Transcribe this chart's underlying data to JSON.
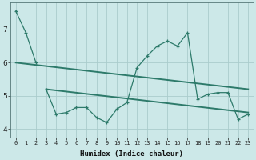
{
  "xlabel": "Humidex (Indice chaleur)",
  "background_color": "#cce8e8",
  "grid_color": "#aacccc",
  "line_color": "#2d7a6a",
  "x_values": [
    0,
    1,
    2,
    3,
    4,
    5,
    6,
    7,
    8,
    9,
    10,
    11,
    12,
    13,
    14,
    15,
    16,
    17,
    18,
    19,
    20,
    21,
    22,
    23
  ],
  "series1_x": [
    0,
    1,
    2
  ],
  "series1_y": [
    7.55,
    6.9,
    6.0
  ],
  "series2_x": [
    3,
    4,
    5,
    6,
    7,
    8,
    9,
    10,
    11,
    12,
    13,
    14,
    15,
    16,
    17,
    18,
    19,
    20,
    21,
    22,
    23
  ],
  "series2_y": [
    5.2,
    4.45,
    4.5,
    4.65,
    4.65,
    4.35,
    4.2,
    4.6,
    4.8,
    5.85,
    6.2,
    6.5,
    6.65,
    6.5,
    6.9,
    4.9,
    5.05,
    5.1,
    5.1,
    4.3,
    4.45
  ],
  "trend1_x": [
    0,
    23
  ],
  "trend1_y": [
    6.0,
    5.2
  ],
  "trend2_x": [
    3,
    23
  ],
  "trend2_y": [
    5.2,
    4.5
  ],
  "ylim": [
    3.75,
    7.8
  ],
  "yticks": [
    4,
    5,
    6,
    7
  ],
  "xlim": [
    -0.5,
    23.5
  ]
}
